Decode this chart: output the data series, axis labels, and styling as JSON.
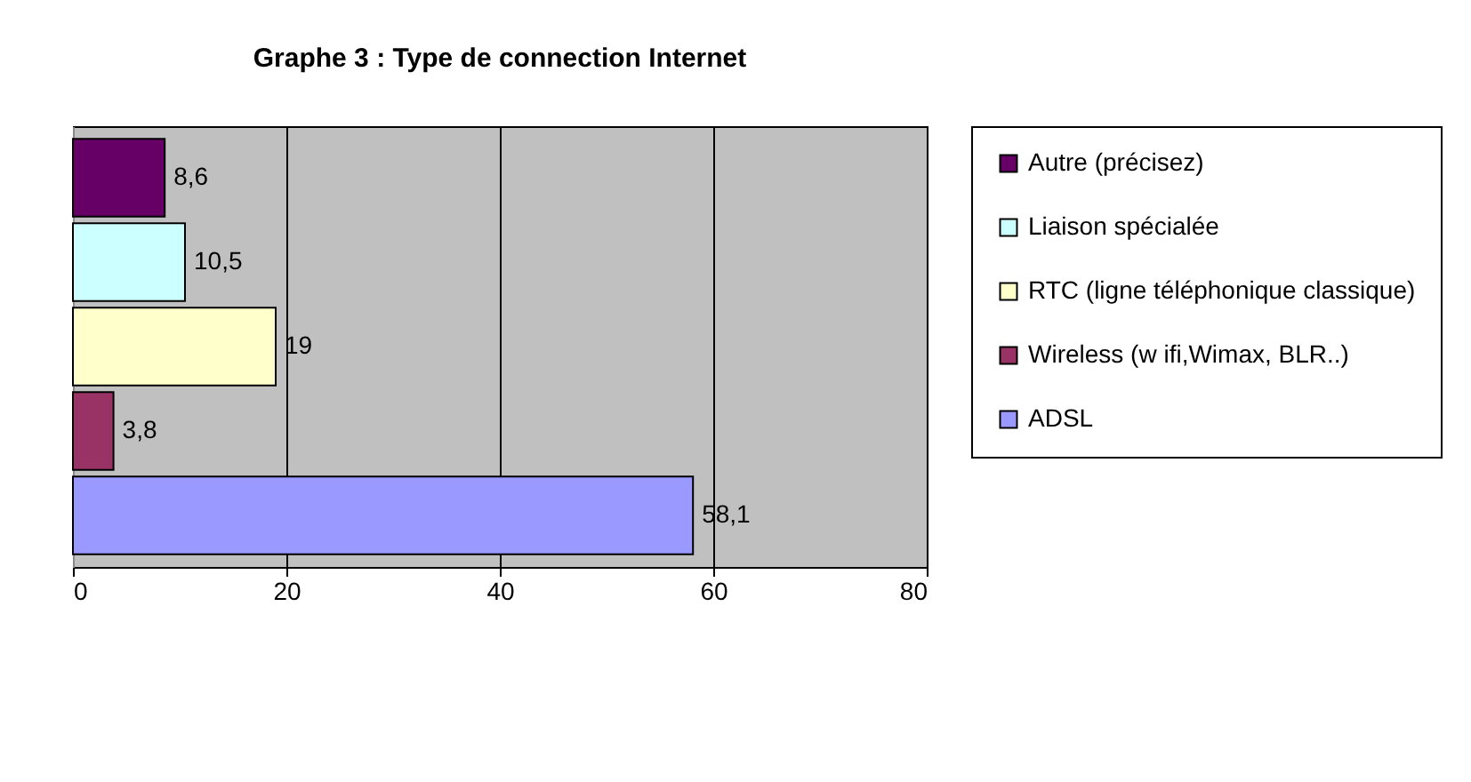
{
  "chart_data": {
    "type": "bar",
    "orientation": "horizontal",
    "title": "Graphe 3 : Type de connection Internet",
    "categories": [
      null,
      null,
      null,
      null,
      null
    ],
    "series": [
      {
        "name": "Autre (précisez)",
        "color": "#660066",
        "values": [
          8.6,
          null,
          null,
          null,
          null
        ],
        "value_labels": [
          "8,6",
          null,
          null,
          null,
          null
        ]
      },
      {
        "name": "Liaison spécialée",
        "color": "#ccffff",
        "values": [
          null,
          10.5,
          null,
          null,
          null
        ],
        "value_labels": [
          null,
          "10,5",
          null,
          null,
          null
        ]
      },
      {
        "name": "RTC (ligne téléphonique classique)",
        "color": "#ffffcc",
        "values": [
          null,
          null,
          19,
          null,
          null
        ],
        "value_labels": [
          null,
          null,
          "19",
          null,
          null
        ]
      },
      {
        "name": "Wireless (w ifi,Wimax, BLR..)",
        "color": "#993366",
        "values": [
          null,
          null,
          null,
          3.8,
          null
        ],
        "value_labels": [
          null,
          null,
          null,
          "3,8",
          null
        ]
      },
      {
        "name": "ADSL",
        "color": "#9999ff",
        "values": [
          null,
          null,
          null,
          null,
          58.1
        ],
        "value_labels": [
          null,
          null,
          null,
          null,
          "58,1"
        ]
      }
    ],
    "xlim": [
      0,
      80
    ],
    "xticks": [
      0,
      20,
      40,
      60,
      80
    ],
    "grid": "x",
    "legend": "right",
    "tick_labels": "x"
  }
}
